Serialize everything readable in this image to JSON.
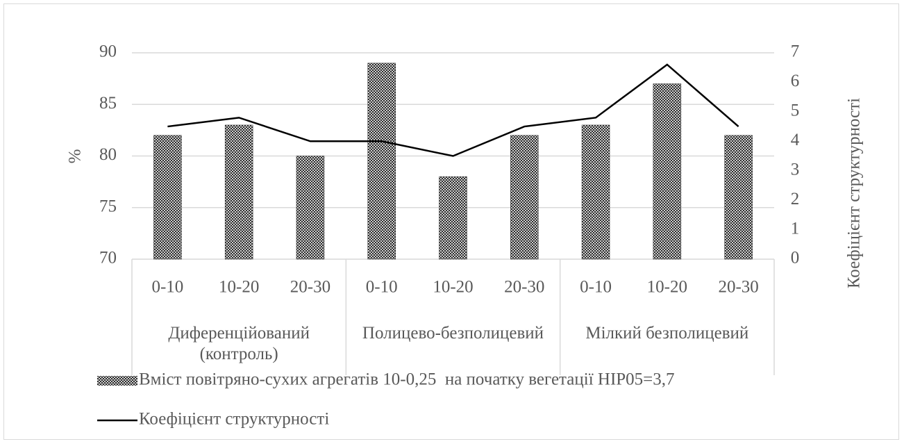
{
  "chart_data": {
    "type": "bar_line",
    "y_label": "%",
    "y2_label": "Коефіцієнт структурності",
    "categories": [
      "0-10",
      "10-20",
      "20-30",
      "0-10",
      "10-20",
      "20-30",
      "0-10",
      "10-20",
      "20-30"
    ],
    "groups": [
      "Диференційований (контроль)",
      "Полицево-безполицевий",
      "Мілкий безполицевий"
    ],
    "series": [
      {
        "name": "Вміст повітряно-сухих агрегатів 10-0,25  на початку вегетації НІР05=3,7",
        "type": "bar",
        "color": "#2b2b2b",
        "values": [
          82,
          83,
          80,
          89,
          78,
          82,
          83,
          87,
          82
        ]
      },
      {
        "name": "Коефіцієнт структурності",
        "type": "line",
        "axis": "y2",
        "color": "#000000",
        "values": [
          4.5,
          4.8,
          4.0,
          4.0,
          3.5,
          4.5,
          4.8,
          6.6,
          4.5
        ]
      }
    ],
    "ylim": [
      70,
      90
    ],
    "yticks": [
      70,
      75,
      80,
      85,
      90
    ],
    "y2lim": [
      0,
      7
    ],
    "y2ticks": [
      0,
      1,
      2,
      3,
      4,
      5,
      6,
      7
    ],
    "grid": true
  }
}
